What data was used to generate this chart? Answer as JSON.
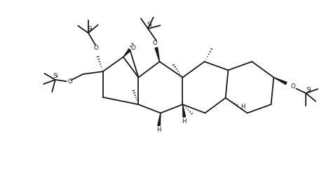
{
  "bg": "#ffffff",
  "lc": "#1a1a1a",
  "lw": 1.3,
  "figsize": [
    4.72,
    2.47
  ],
  "dpi": 100,
  "xlim": [
    0,
    10
  ],
  "ylim": [
    0,
    5.25
  ]
}
